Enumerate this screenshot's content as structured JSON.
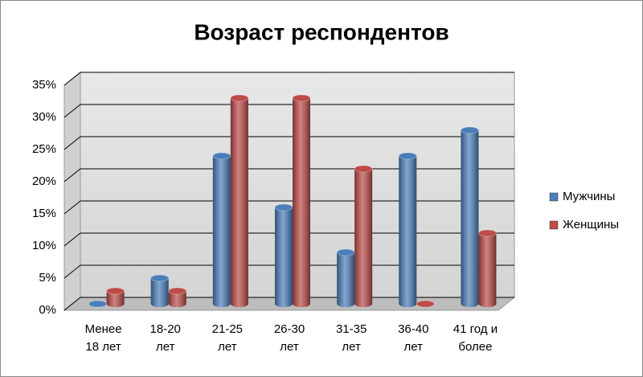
{
  "chart_data": {
    "type": "bar",
    "title": "Возраст респондентов",
    "categories": [
      [
        "Менее",
        "18 лет"
      ],
      [
        "18-20",
        "лет"
      ],
      [
        "21-25",
        "лет"
      ],
      [
        "26-30",
        "лет"
      ],
      [
        "31-35",
        "лет"
      ],
      [
        "36-40",
        "лет"
      ],
      [
        "41 год и",
        "более"
      ]
    ],
    "series": [
      {
        "name": "Мужчины",
        "color": "#4a7ebb",
        "values": [
          0,
          4,
          23,
          15,
          8,
          23,
          27
        ]
      },
      {
        "name": "Женщины",
        "color": "#be4b48",
        "values": [
          2,
          2,
          32,
          32,
          21,
          0,
          11
        ]
      }
    ],
    "ylim": [
      0,
      35
    ],
    "yticks": [
      {
        "value": 0,
        "label": "0%"
      },
      {
        "value": 5,
        "label": "5%"
      },
      {
        "value": 10,
        "label": "10%"
      },
      {
        "value": 15,
        "label": "15%"
      },
      {
        "value": 20,
        "label": "20%"
      },
      {
        "value": 25,
        "label": "25%"
      },
      {
        "value": 30,
        "label": "30%"
      },
      {
        "value": 35,
        "label": "35%"
      }
    ],
    "grid": true,
    "legend": "right"
  }
}
